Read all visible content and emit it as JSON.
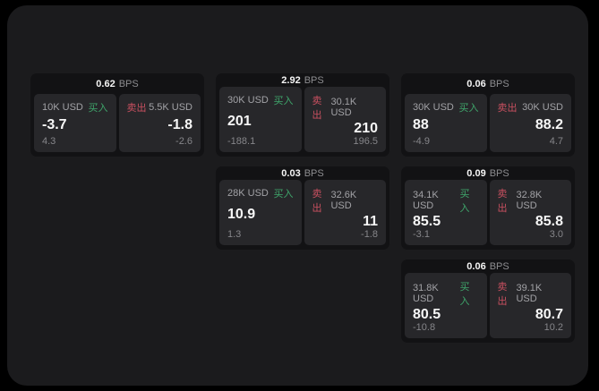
{
  "labels": {
    "bps_suffix": "BPS",
    "buy": "买入",
    "sell": "卖出"
  },
  "colors": {
    "buy_green": "#3fa66b",
    "sell_red": "#c95060",
    "page_background": "#000000",
    "panel_background": "#1b1b1d",
    "card_background": "#121214",
    "tile_background": "#27272a"
  },
  "cards": [
    {
      "bps": "0.62",
      "buy": {
        "size": "10K USD",
        "price": "-3.7",
        "delta": "4.3"
      },
      "sell": {
        "size": "5.5K USD",
        "price": "-1.8",
        "delta": "-2.6"
      }
    },
    {
      "bps": "2.92",
      "buy": {
        "size": "30K USD",
        "price": "201",
        "delta": "-188.1"
      },
      "sell": {
        "size": "30.1K USD",
        "price": "210",
        "delta": "196.5"
      }
    },
    {
      "bps": "0.06",
      "buy": {
        "size": "30K USD",
        "price": "88",
        "delta": "-4.9"
      },
      "sell": {
        "size": "30K USD",
        "price": "88.2",
        "delta": "4.7"
      }
    },
    {
      "bps": "0.03",
      "buy": {
        "size": "28K USD",
        "price": "10.9",
        "delta": "1.3"
      },
      "sell": {
        "size": "32.6K USD",
        "price": "11",
        "delta": "-1.8"
      }
    },
    {
      "bps": "0.09",
      "buy": {
        "size": "34.1K USD",
        "price": "85.5",
        "delta": "-3.1"
      },
      "sell": {
        "size": "32.8K USD",
        "price": "85.8",
        "delta": "3.0"
      }
    },
    {
      "bps": "0.06",
      "buy": {
        "size": "31.8K USD",
        "price": "80.5",
        "delta": "-10.8"
      },
      "sell": {
        "size": "39.1K USD",
        "price": "80.7",
        "delta": "10.2"
      }
    }
  ]
}
